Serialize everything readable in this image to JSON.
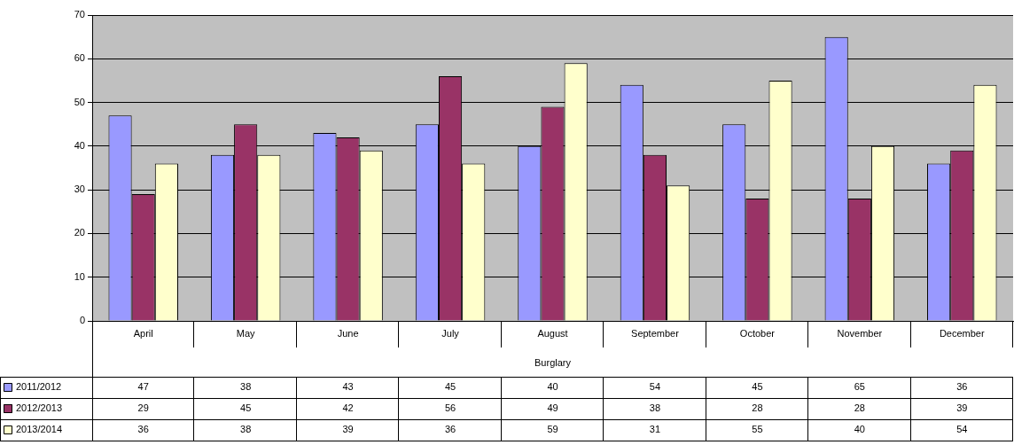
{
  "chart_data": {
    "type": "bar",
    "xlabel": "Burglary",
    "categories": [
      "April",
      "May",
      "June",
      "July",
      "August",
      "September",
      "October",
      "November",
      "December"
    ],
    "series": [
      {
        "name": "2011/2012",
        "color": "#9999ff",
        "values": [
          47,
          38,
          43,
          45,
          40,
          54,
          45,
          65,
          36
        ]
      },
      {
        "name": "2012/2013",
        "color": "#993366",
        "values": [
          29,
          45,
          42,
          56,
          49,
          38,
          28,
          28,
          39
        ]
      },
      {
        "name": "2013/2014",
        "color": "#ffffcc",
        "values": [
          36,
          38,
          39,
          36,
          59,
          31,
          55,
          40,
          54
        ]
      }
    ],
    "ylim": [
      0,
      70
    ],
    "yticks": [
      0,
      10,
      20,
      30,
      40,
      50,
      60,
      70
    ],
    "grid": "y",
    "legend": "bottom left",
    "data_labels": true
  }
}
